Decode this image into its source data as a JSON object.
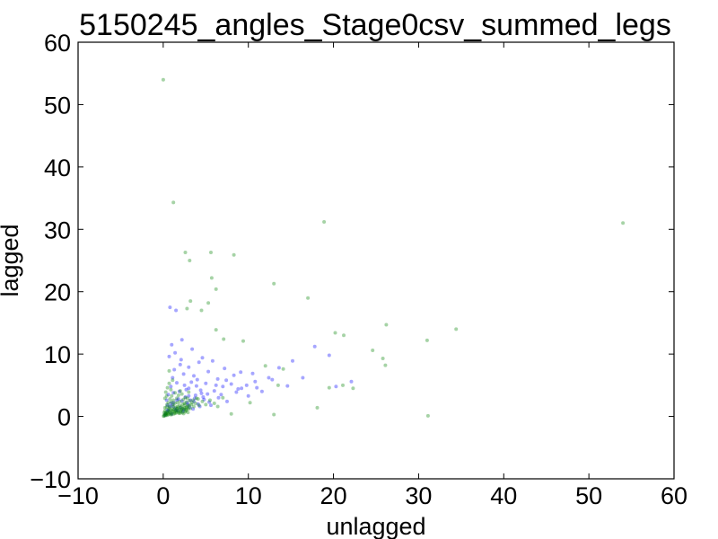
{
  "chart_data": {
    "type": "scatter",
    "title": "5150245_angles_Stage0csv_summed_legs",
    "xlabel": "unlagged",
    "ylabel": "lagged",
    "xlim": [
      -10,
      60
    ],
    "ylim": [
      -10,
      60
    ],
    "xticks": [
      "−10",
      "0",
      "10",
      "20",
      "30",
      "40",
      "50",
      "60"
    ],
    "yticks": [
      "−10",
      "0",
      "10",
      "20",
      "30",
      "40",
      "50",
      "60"
    ],
    "grid": false,
    "legend": "none",
    "series": [
      {
        "color": "#0000ff",
        "opacity": 0.35,
        "points": [
          [
            0.3,
            0.5
          ],
          [
            0.5,
            1.0
          ],
          [
            0.8,
            1.6
          ],
          [
            1.0,
            0.4
          ],
          [
            1.2,
            2.2
          ],
          [
            1.5,
            1.0
          ],
          [
            1.8,
            2.8
          ],
          [
            2.0,
            1.4
          ],
          [
            2.3,
            0.8
          ],
          [
            2.6,
            3.1
          ],
          [
            2.9,
            1.9
          ],
          [
            3.2,
            2.6
          ],
          [
            3.5,
            1.2
          ],
          [
            3.8,
            3.4
          ],
          [
            4.1,
            2.0
          ],
          [
            4.4,
            4.2
          ],
          [
            4.8,
            2.7
          ],
          [
            5.2,
            3.6
          ],
          [
            5.6,
            1.8
          ],
          [
            6.0,
            4.1
          ],
          [
            6.5,
            3.0
          ],
          [
            7.0,
            4.8
          ],
          [
            7.5,
            2.4
          ],
          [
            8.0,
            5.2
          ],
          [
            8.6,
            3.9
          ],
          [
            9.2,
            4.5
          ],
          [
            10.0,
            3.3
          ],
          [
            10.8,
            5.6
          ],
          [
            11.6,
            4.0
          ],
          [
            12.4,
            6.2
          ],
          [
            0.6,
            3.5
          ],
          [
            0.9,
            4.8
          ],
          [
            1.1,
            6.2
          ],
          [
            1.3,
            7.5
          ],
          [
            1.6,
            5.4
          ],
          [
            2.0,
            8.3
          ],
          [
            2.4,
            6.8
          ],
          [
            0.7,
            9.6
          ],
          [
            1.4,
            10.2
          ],
          [
            2.1,
            9.1
          ],
          [
            3.0,
            7.9
          ],
          [
            3.6,
            6.5
          ],
          [
            4.2,
            8.7
          ],
          [
            1.0,
            11.5
          ],
          [
            0.8,
            17.5
          ],
          [
            1.5,
            17.0
          ],
          [
            2.2,
            12.3
          ],
          [
            3.4,
            10.8
          ],
          [
            4.6,
            9.4
          ],
          [
            5.3,
            7.2
          ],
          [
            5.8,
            8.9
          ],
          [
            6.4,
            6.0
          ],
          [
            7.2,
            7.7
          ],
          [
            8.3,
            6.6
          ],
          [
            9.1,
            7.1
          ],
          [
            3.0,
            4.5
          ],
          [
            2.5,
            5.0
          ],
          [
            1.9,
            4.0
          ],
          [
            3.3,
            5.5
          ],
          [
            4.0,
            5.9
          ],
          [
            1.2,
            3.8
          ],
          [
            0.4,
            2.6
          ],
          [
            2.7,
            4.3
          ],
          [
            3.9,
            4.9
          ],
          [
            5.0,
            5.3
          ],
          [
            6.2,
            5.0
          ],
          [
            7.4,
            5.8
          ],
          [
            8.8,
            4.4
          ],
          [
            9.8,
            5.0
          ],
          [
            11.0,
            4.6
          ],
          [
            12.8,
            5.9
          ],
          [
            13.6,
            7.8
          ],
          [
            15.2,
            8.9
          ],
          [
            17.8,
            11.2
          ],
          [
            19.5,
            9.8
          ],
          [
            22.1,
            5.6
          ],
          [
            20.3,
            4.8
          ],
          [
            14.6,
            4.9
          ],
          [
            16.4,
            6.2
          ],
          [
            10.5,
            6.9
          ],
          [
            0.5,
            1.8
          ],
          [
            0.9,
            2.1
          ],
          [
            1.4,
            1.3
          ],
          [
            1.7,
            0.9
          ],
          [
            2.2,
            2.5
          ],
          [
            2.8,
            2.2
          ],
          [
            3.1,
            1.5
          ],
          [
            3.6,
            2.4
          ],
          [
            4.3,
            1.6
          ],
          [
            4.7,
            3.1
          ],
          [
            0.2,
            0.2
          ],
          [
            0.6,
            0.9
          ],
          [
            1.1,
            1.7
          ],
          [
            1.6,
            2.6
          ],
          [
            2.4,
            1.1
          ],
          [
            3.0,
            3.3
          ],
          [
            3.7,
            2.9
          ],
          [
            4.5,
            3.7
          ],
          [
            5.4,
            2.3
          ],
          [
            6.8,
            3.5
          ]
        ]
      },
      {
        "color": "#008000",
        "opacity": 0.35,
        "points": [
          [
            0.0,
            54.0
          ],
          [
            1.2,
            34.3
          ],
          [
            18.9,
            31.2
          ],
          [
            54.0,
            31.0
          ],
          [
            2.6,
            26.3
          ],
          [
            5.6,
            26.3
          ],
          [
            8.3,
            25.9
          ],
          [
            3.1,
            25.0
          ],
          [
            5.7,
            22.2
          ],
          [
            6.2,
            20.4
          ],
          [
            13.0,
            21.3
          ],
          [
            17.0,
            19.0
          ],
          [
            3.2,
            18.5
          ],
          [
            5.3,
            18.2
          ],
          [
            2.8,
            17.3
          ],
          [
            4.5,
            17.0
          ],
          [
            26.2,
            14.7
          ],
          [
            34.4,
            14.0
          ],
          [
            6.2,
            13.9
          ],
          [
            20.2,
            13.4
          ],
          [
            21.2,
            13.0
          ],
          [
            31.0,
            12.2
          ],
          [
            7.1,
            12.4
          ],
          [
            9.4,
            12.1
          ],
          [
            24.6,
            10.6
          ],
          [
            25.8,
            9.3
          ],
          [
            26.1,
            8.2
          ],
          [
            12.0,
            8.1
          ],
          [
            14.1,
            7.6
          ],
          [
            0.7,
            7.3
          ],
          [
            21.1,
            5.0
          ],
          [
            22.3,
            4.5
          ],
          [
            19.5,
            4.6
          ],
          [
            18.1,
            1.4
          ],
          [
            31.1,
            0.1
          ],
          [
            13.0,
            0.3
          ],
          [
            8.0,
            0.4
          ],
          [
            6.4,
            1.6
          ],
          [
            10.2,
            2.2
          ],
          [
            13.5,
            5.0
          ],
          [
            0.1,
            0.1
          ],
          [
            0.3,
            0.4
          ],
          [
            0.5,
            0.2
          ],
          [
            0.7,
            0.8
          ],
          [
            0.9,
            0.5
          ],
          [
            1.1,
            1.2
          ],
          [
            1.3,
            0.7
          ],
          [
            1.5,
            1.5
          ],
          [
            1.7,
            0.9
          ],
          [
            1.9,
            1.8
          ],
          [
            2.1,
            1.1
          ],
          [
            2.3,
            2.0
          ],
          [
            2.5,
            1.4
          ],
          [
            2.7,
            2.3
          ],
          [
            2.9,
            1.7
          ],
          [
            3.1,
            2.5
          ],
          [
            3.3,
            1.9
          ],
          [
            3.5,
            2.6
          ],
          [
            3.8,
            2.1
          ],
          [
            4.1,
            2.8
          ],
          [
            0.2,
            0.9
          ],
          [
            0.4,
            1.5
          ],
          [
            0.6,
            2.2
          ],
          [
            0.8,
            2.8
          ],
          [
            1.0,
            3.3
          ],
          [
            1.2,
            2.6
          ],
          [
            1.4,
            3.8
          ],
          [
            1.6,
            2.9
          ],
          [
            1.8,
            3.4
          ],
          [
            2.0,
            4.1
          ],
          [
            0.3,
            3.9
          ],
          [
            0.5,
            4.6
          ],
          [
            0.7,
            5.3
          ],
          [
            0.9,
            4.3
          ],
          [
            1.1,
            5.8
          ],
          [
            0.2,
            2.9
          ],
          [
            0.4,
            3.3
          ],
          [
            2.2,
            3.6
          ],
          [
            2.6,
            3.0
          ],
          [
            3.0,
            3.9
          ],
          [
            0.1,
            0.6
          ],
          [
            0.2,
            1.4
          ],
          [
            0.35,
            0.3
          ],
          [
            0.45,
            1.9
          ],
          [
            0.55,
            0.7
          ],
          [
            0.65,
            1.1
          ],
          [
            0.75,
            1.6
          ],
          [
            0.85,
            0.3
          ],
          [
            0.95,
            2.3
          ],
          [
            1.05,
            0.9
          ],
          [
            1.15,
            1.9
          ],
          [
            1.25,
            0.4
          ],
          [
            1.35,
            2.1
          ],
          [
            1.45,
            1.0
          ],
          [
            1.55,
            0.6
          ],
          [
            1.65,
            2.2
          ],
          [
            1.75,
            1.3
          ],
          [
            1.85,
            0.5
          ],
          [
            1.95,
            2.4
          ],
          [
            2.05,
            0.8
          ],
          [
            2.15,
            1.6
          ],
          [
            2.25,
            0.6
          ],
          [
            2.35,
            2.7
          ],
          [
            2.45,
            1.2
          ],
          [
            2.55,
            1.8
          ],
          [
            2.65,
            0.9
          ],
          [
            2.75,
            1.5
          ],
          [
            2.85,
            2.9
          ],
          [
            2.95,
            1.2
          ],
          [
            3.05,
            1.8
          ],
          [
            3.2,
            1.3
          ],
          [
            3.4,
            2.2
          ],
          [
            3.6,
            1.6
          ],
          [
            3.9,
            2.9
          ],
          [
            4.2,
            1.8
          ],
          [
            4.6,
            2.4
          ],
          [
            5.0,
            1.9
          ],
          [
            5.5,
            2.6
          ],
          [
            6.0,
            2.1
          ],
          [
            7.0,
            3.0
          ],
          [
            0.05,
            0.05
          ],
          [
            0.15,
            0.25
          ],
          [
            0.25,
            0.55
          ],
          [
            0.3,
            0.15
          ],
          [
            0.4,
            0.75
          ],
          [
            0.5,
            0.45
          ],
          [
            0.6,
            0.35
          ],
          [
            0.7,
            1.35
          ],
          [
            0.8,
            0.6
          ],
          [
            0.9,
            1.05
          ],
          [
            1.0,
            0.3
          ],
          [
            1.1,
            0.75
          ],
          [
            1.2,
            1.55
          ],
          [
            1.3,
            1.1
          ],
          [
            1.4,
            0.5
          ],
          [
            1.5,
            0.85
          ],
          [
            1.6,
            1.25
          ],
          [
            1.7,
            1.55
          ],
          [
            1.8,
            0.7
          ],
          [
            1.9,
            1.15
          ],
          [
            2.0,
            0.55
          ],
          [
            2.1,
            1.45
          ],
          [
            2.2,
            0.95
          ],
          [
            2.3,
            1.25
          ],
          [
            2.4,
            0.45
          ],
          [
            2.5,
            2.05
          ],
          [
            2.6,
            0.75
          ],
          [
            2.7,
            1.05
          ],
          [
            2.8,
            1.35
          ],
          [
            2.9,
            0.65
          ]
        ]
      }
    ]
  }
}
